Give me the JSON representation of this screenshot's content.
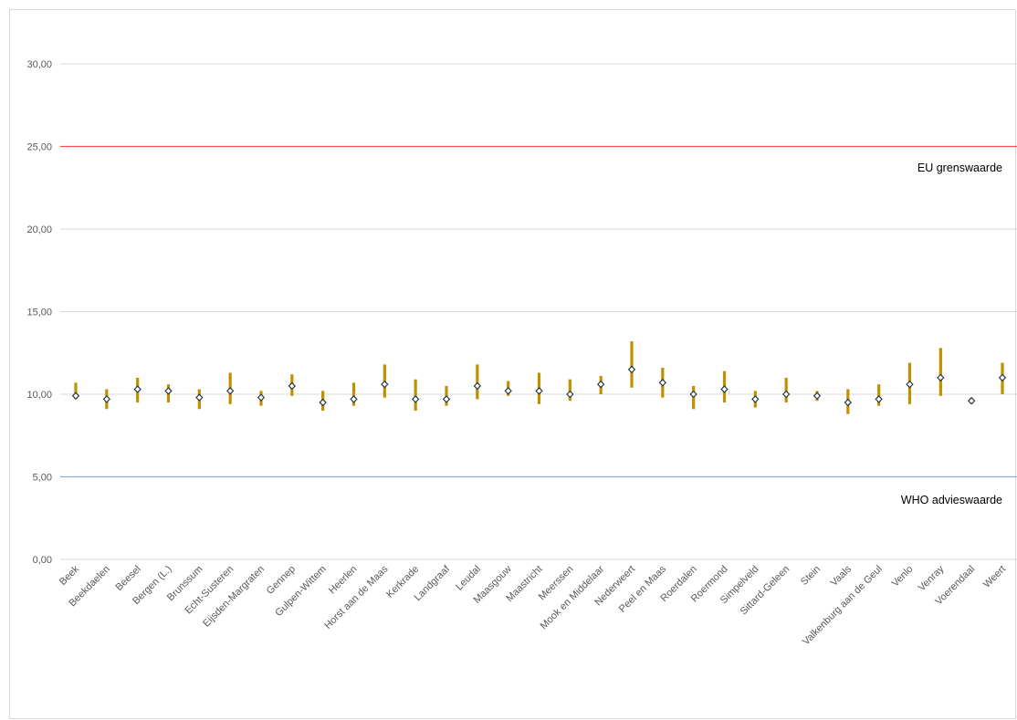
{
  "chart_data": {
    "type": "high-low-mean",
    "ylim": [
      0,
      32
    ],
    "yticks": [
      "0,00",
      "5,00",
      "10,00",
      "15,00",
      "20,00",
      "25,00",
      "30,00"
    ],
    "ytick_values": [
      0,
      5,
      10,
      15,
      20,
      25,
      30
    ],
    "grid": true,
    "categories": [
      "Beek",
      "Beekdaelen",
      "Beesel",
      "Bergen (L.)",
      "Brunssum",
      "Echt-Susteren",
      "Eijsden-Margraten",
      "Gennep",
      "Gulpen-Wittem",
      "Heerlen",
      "Horst aan de Maas",
      "Kerkrade",
      "Landgraaf",
      "Leudal",
      "Maasgouw",
      "Maastricht",
      "Meerssen",
      "Mook en Middelaar",
      "Nederweert",
      "Peel en Maas",
      "Roerdalen",
      "Roermond",
      "Simpelveld",
      "Sittard-Geleen",
      "Stein",
      "Vaals",
      "Valkenburg aan de Geul",
      "Venlo",
      "Venray",
      "Voerendaal",
      "Weert"
    ],
    "high": [
      10.7,
      10.3,
      11.0,
      10.6,
      10.3,
      11.3,
      10.2,
      11.2,
      10.2,
      10.7,
      11.8,
      10.9,
      10.5,
      11.8,
      10.8,
      11.3,
      10.9,
      11.1,
      13.2,
      11.6,
      10.5,
      11.4,
      10.2,
      11.0,
      10.2,
      10.3,
      10.6,
      11.9,
      12.8,
      9.8,
      11.9
    ],
    "low": [
      9.7,
      9.1,
      9.5,
      9.5,
      9.1,
      9.4,
      9.3,
      9.9,
      9.0,
      9.3,
      9.8,
      9.0,
      9.3,
      9.7,
      9.9,
      9.4,
      9.6,
      10.0,
      10.4,
      9.8,
      9.1,
      9.5,
      9.2,
      9.5,
      9.6,
      8.8,
      9.3,
      9.4,
      9.9,
      9.4,
      10.0
    ],
    "mean": [
      9.9,
      9.7,
      10.3,
      10.2,
      9.8,
      10.2,
      9.8,
      10.5,
      9.5,
      9.7,
      10.6,
      9.7,
      9.7,
      10.5,
      10.2,
      10.2,
      10.0,
      10.6,
      11.5,
      10.7,
      10.0,
      10.3,
      9.7,
      10.0,
      9.9,
      9.5,
      9.7,
      10.6,
      11.0,
      9.6,
      11.0
    ],
    "reference_lines": [
      {
        "name": "EU grenswaarde",
        "value": 25,
        "color": "#ff4f4f"
      },
      {
        "name": "WHO advieswaarde",
        "value": 5,
        "color": "#8faadc"
      }
    ],
    "colors": {
      "range": "#bf9000",
      "marker_stroke": "#1f2d3d",
      "marker_fill": "#ffffff",
      "grid": "#d9d9d9"
    }
  }
}
